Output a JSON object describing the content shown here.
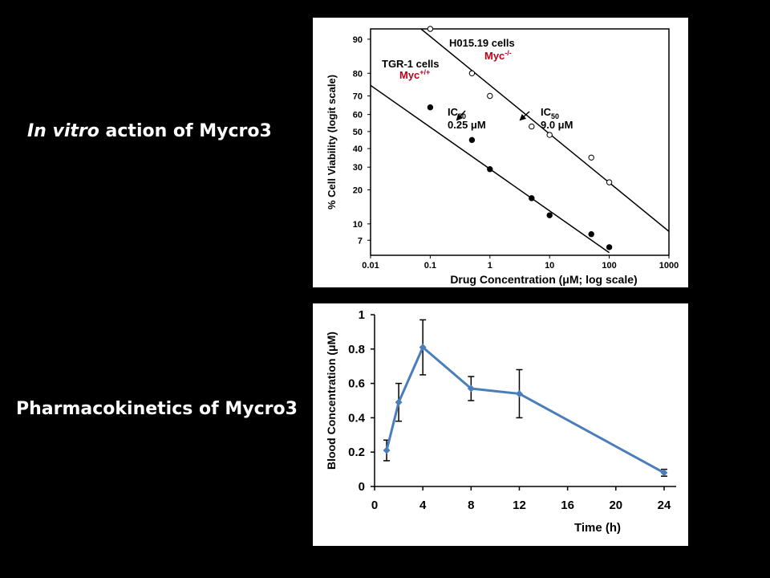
{
  "captions": {
    "top_em": "In vitro",
    "top_rest": " action of Mycro3",
    "bottom": "Pharmacokinetics of Mycro3"
  },
  "chart_data": [
    {
      "type": "scatter",
      "title": "",
      "xlabel": "Drug Concentration (μM; log scale)",
      "ylabel": "% Cell Viability (logit scale)",
      "x_scale": "log",
      "y_scale": "logit",
      "xlim": [
        0.01,
        1000
      ],
      "ylim": [
        5,
        92
      ],
      "x_ticks": [
        0.01,
        0.1,
        1,
        10,
        100,
        1000
      ],
      "x_tick_labels": [
        "0.01",
        "0.1",
        "1",
        "10",
        "100",
        "1000"
      ],
      "y_ticks": [
        7,
        10,
        20,
        30,
        40,
        50,
        60,
        70,
        80,
        90
      ],
      "y_tick_labels": [
        "7",
        "10",
        "20",
        "30",
        "40",
        "50",
        "60",
        "70",
        "80",
        "90"
      ],
      "series": [
        {
          "name": "H015.19 cells",
          "genotype_label": "Myc",
          "genotype_sup": "-/-",
          "marker": "open-circle",
          "points": [
            [
              0.1,
              92
            ],
            [
              0.5,
              80
            ],
            [
              1,
              70
            ],
            [
              5,
              53
            ],
            [
              10,
              48
            ],
            [
              50,
              35
            ],
            [
              100,
              23
            ]
          ],
          "fit_line": [
            [
              0.07,
              92
            ],
            [
              1000,
              8.5
            ]
          ],
          "ic50_label": "IC",
          "ic50_sub": "50",
          "ic50_value": "9.0 μM",
          "ic50_x": 9.0
        },
        {
          "name": "TGR-1 cells",
          "genotype_label": "Myc",
          "genotype_sup": "+/+",
          "marker": "filled-circle",
          "points": [
            [
              0.1,
              64
            ],
            [
              0.5,
              45
            ],
            [
              1,
              29
            ],
            [
              5,
              17
            ],
            [
              10,
              12
            ],
            [
              50,
              8
            ],
            [
              100,
              6
            ]
          ],
          "fit_line": [
            [
              0.01,
              75
            ],
            [
              100,
              5.3
            ]
          ],
          "ic50_label": "IC",
          "ic50_sub": "50",
          "ic50_value": "0.25 μM",
          "ic50_x": 0.25
        }
      ],
      "colors": {
        "genotype": "#c0001a",
        "line": "#000000"
      }
    },
    {
      "type": "line",
      "title": "",
      "xlabel": "Time (h)",
      "ylabel": "Blood Concentration (μM)",
      "xlim": [
        0,
        25
      ],
      "ylim": [
        0,
        1
      ],
      "x_ticks": [
        0,
        4,
        8,
        12,
        16,
        20,
        24
      ],
      "y_ticks": [
        0,
        0.2,
        0.4,
        0.6,
        0.8,
        1
      ],
      "y_tick_labels": [
        "0",
        "0.2",
        "0.4",
        "0.6",
        "0.8",
        "1"
      ],
      "x": [
        1,
        2,
        4,
        8,
        12,
        24
      ],
      "y": [
        0.21,
        0.49,
        0.81,
        0.57,
        0.54,
        0.08
      ],
      "err": [
        0.06,
        0.11,
        0.16,
        0.07,
        0.14,
        0.02
      ],
      "colors": {
        "line": "#4a7ebb",
        "error": "#000000"
      }
    }
  ]
}
